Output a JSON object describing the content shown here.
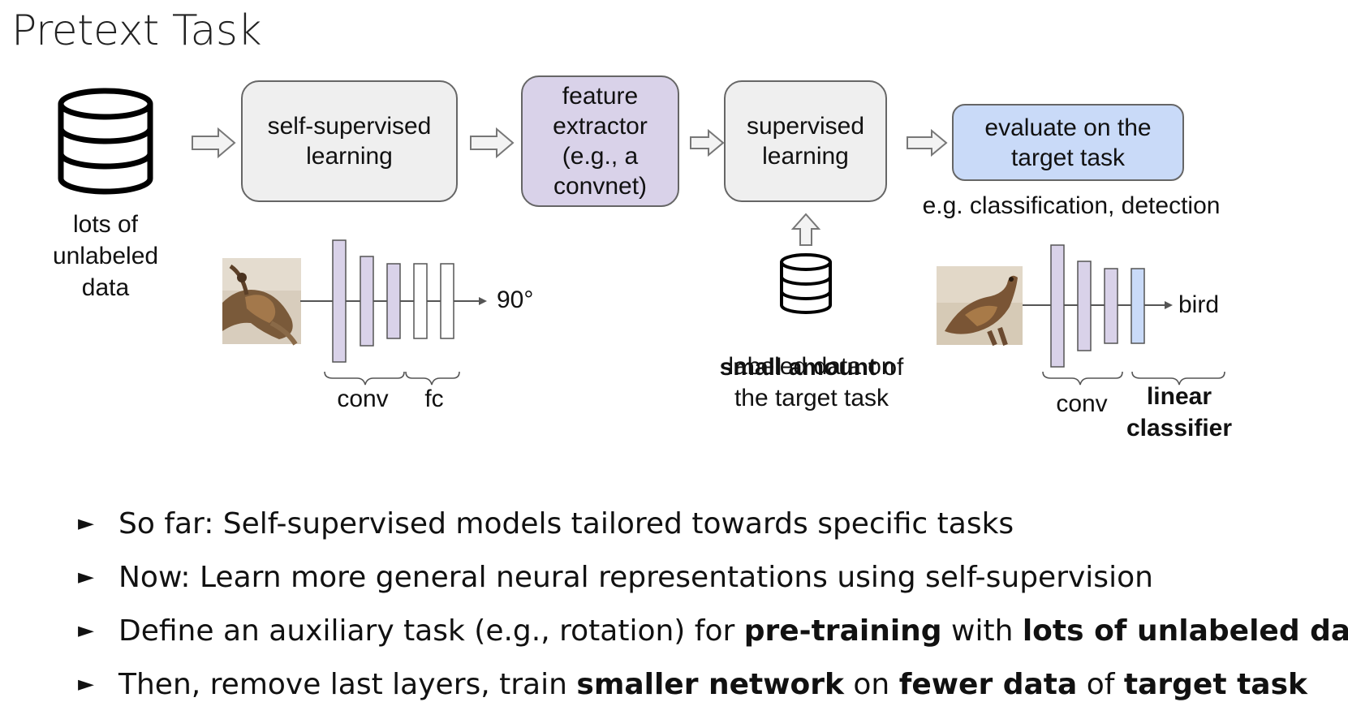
{
  "title": "Pretext Task",
  "database_label": "lots of\nunlabeled\ndata",
  "boxes": {
    "ssl": "self-supervised\nlearning",
    "feature": "feature\nextractor\n(e.g., a\nconvnet)",
    "supervised": "supervised\nlearning",
    "evaluate": "evaluate on the\ntarget task"
  },
  "eval_caption": "e.g. classification, detection",
  "small_db": {
    "bold": "small amount",
    "rest1": " of",
    "rest2": "labeled data on\nthe target task"
  },
  "net_left": {
    "output": "90°",
    "brace_conv": "conv",
    "brace_fc": "fc"
  },
  "net_right": {
    "output": "bird",
    "brace_conv": "conv",
    "brace_linear": "linear\nclassifier"
  },
  "bullets": [
    {
      "marker": "►",
      "parts": [
        {
          "t": "So far: Self-supervised models tailored towards specific tasks",
          "b": false
        }
      ]
    },
    {
      "marker": "►",
      "parts": [
        {
          "t": "Now: Learn more general neural representations using self-supervision",
          "b": false
        }
      ]
    },
    {
      "marker": "►",
      "parts": [
        {
          "t": "Define an auxiliary task (e.g., rotation) for ",
          "b": false
        },
        {
          "t": "pre-training",
          "b": true
        },
        {
          "t": " with ",
          "b": false
        },
        {
          "t": "lots of unlabeled data",
          "b": true
        }
      ]
    },
    {
      "marker": "►",
      "parts": [
        {
          "t": "Then, remove last layers, train ",
          "b": false
        },
        {
          "t": "smaller network",
          "b": true
        },
        {
          "t": " on ",
          "b": false
        },
        {
          "t": "fewer data",
          "b": true
        },
        {
          "t": " of ",
          "b": false
        },
        {
          "t": "target task",
          "b": true
        }
      ]
    }
  ],
  "colors": {
    "purple": "#d9d2e9",
    "blue": "#c9daf8",
    "gray": "#efefef"
  }
}
